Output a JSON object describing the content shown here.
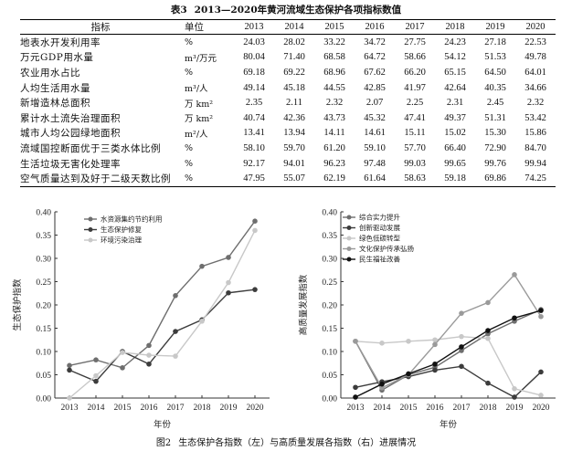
{
  "table": {
    "caption_num": "表3",
    "caption_text": "2013—2020年黄河流域生态保护各项指标数值",
    "header": {
      "indicator": "指标",
      "unit": "单位"
    },
    "years": [
      "2013",
      "2014",
      "2015",
      "2016",
      "2017",
      "2018",
      "2019",
      "2020"
    ],
    "rows": [
      {
        "indicator": "地表水开发利用率",
        "unit": "%",
        "values": [
          "24.03",
          "28.02",
          "33.22",
          "34.72",
          "27.75",
          "24.23",
          "27.18",
          "22.53"
        ]
      },
      {
        "indicator": "万元GDP用水量",
        "unit": "m³/万元",
        "values": [
          "80.04",
          "71.40",
          "68.58",
          "64.72",
          "58.66",
          "54.12",
          "51.53",
          "49.78"
        ]
      },
      {
        "indicator": "农业用水占比",
        "unit": "%",
        "values": [
          "69.18",
          "69.22",
          "68.96",
          "67.62",
          "66.20",
          "65.15",
          "64.50",
          "64.01"
        ]
      },
      {
        "indicator": "人均生活用水量",
        "unit": "m³/人",
        "values": [
          "49.14",
          "45.18",
          "44.55",
          "42.85",
          "41.97",
          "42.64",
          "40.35",
          "34.66"
        ]
      },
      {
        "indicator": "新增造林总面积",
        "unit": "万 km²",
        "values": [
          "2.35",
          "2.11",
          "2.32",
          "2.07",
          "2.25",
          "2.31",
          "2.45",
          "2.32"
        ]
      },
      {
        "indicator": "累计水土流失治理面积",
        "unit": "万 km²",
        "values": [
          "40.74",
          "42.36",
          "43.73",
          "45.32",
          "47.41",
          "49.37",
          "51.31",
          "53.42"
        ]
      },
      {
        "indicator": "城市人均公园绿地面积",
        "unit": "m²/人",
        "values": [
          "13.41",
          "13.94",
          "14.11",
          "14.61",
          "15.11",
          "15.02",
          "15.30",
          "15.86"
        ]
      },
      {
        "indicator": "流域国控断面优于三类水体比例",
        "unit": "%",
        "values": [
          "58.10",
          "59.70",
          "61.20",
          "59.10",
          "57.70",
          "66.40",
          "72.90",
          "84.70"
        ]
      },
      {
        "indicator": "生活垃圾无害化处理率",
        "unit": "%",
        "values": [
          "92.17",
          "94.01",
          "96.23",
          "97.48",
          "99.03",
          "99.65",
          "99.76",
          "99.94"
        ]
      },
      {
        "indicator": "空气质量达到及好于二级天数比例",
        "unit": "%",
        "values": [
          "47.95",
          "55.07",
          "62.19",
          "61.64",
          "58.63",
          "59.18",
          "69.86",
          "74.25"
        ]
      }
    ]
  },
  "chart_data": [
    {
      "type": "line",
      "title": "",
      "xlabel": "年份",
      "ylabel": "生态保护指数",
      "x": [
        "2013",
        "2014",
        "2015",
        "2016",
        "2017",
        "2018",
        "2019",
        "2020"
      ],
      "ylim": [
        0,
        0.4
      ],
      "yticks": [
        "0.00",
        "0.05",
        "0.10",
        "0.15",
        "0.20",
        "0.25",
        "0.30",
        "0.35",
        "0.40"
      ],
      "grid": false,
      "legend_position": "top-left",
      "series": [
        {
          "name": "水资源集约节约利用",
          "color": "#6e6e6e",
          "values": [
            0.07,
            0.082,
            0.065,
            0.113,
            0.22,
            0.283,
            0.302,
            0.38
          ]
        },
        {
          "name": "生态保护修复",
          "color": "#3c3c3c",
          "values": [
            0.06,
            0.036,
            0.1,
            0.073,
            0.143,
            0.168,
            0.226,
            0.233
          ]
        },
        {
          "name": "环境污染治理",
          "color": "#c8c8c8",
          "values": [
            0.0,
            0.048,
            0.098,
            0.092,
            0.09,
            0.165,
            0.248,
            0.36
          ]
        }
      ]
    },
    {
      "type": "line",
      "title": "",
      "xlabel": "年份",
      "ylabel": "高质量发展指数",
      "x": [
        "2013",
        "2014",
        "2015",
        "2016",
        "2017",
        "2018",
        "2019",
        "2020"
      ],
      "ylim": [
        0,
        0.4
      ],
      "yticks": [
        "0.00",
        "0.05",
        "0.10",
        "0.15",
        "0.20",
        "0.25",
        "0.30",
        "0.35",
        "0.40"
      ],
      "grid": false,
      "legend_position": "top-right",
      "series": [
        {
          "name": "综合实力提升",
          "color": "#6e6e6e",
          "values": [
            0.122,
            0.017,
            0.05,
            0.066,
            0.102,
            0.138,
            0.165,
            0.19
          ]
        },
        {
          "name": "创新驱动发展",
          "color": "#3c3c3c",
          "values": [
            0.023,
            0.035,
            0.046,
            0.06,
            0.068,
            0.032,
            0.002,
            0.056
          ]
        },
        {
          "name": "绿色低碳转型",
          "color": "#c8c8c8",
          "values": [
            0.122,
            0.118,
            0.122,
            0.125,
            0.132,
            0.128,
            0.02,
            0.006
          ]
        },
        {
          "name": "文化保护传承弘扬",
          "color": "#9a9a9a",
          "values": [
            0.122,
            0.022,
            0.05,
            0.115,
            0.182,
            0.205,
            0.265,
            0.175
          ]
        },
        {
          "name": "民生福祉改善",
          "color": "#111111",
          "values": [
            0.002,
            0.03,
            0.052,
            0.073,
            0.11,
            0.145,
            0.172,
            0.188
          ]
        }
      ]
    }
  ],
  "figure": {
    "caption_num": "图2",
    "caption_text": "生态保护各指数（左）与高质量发展各指数（右）进展情况"
  }
}
